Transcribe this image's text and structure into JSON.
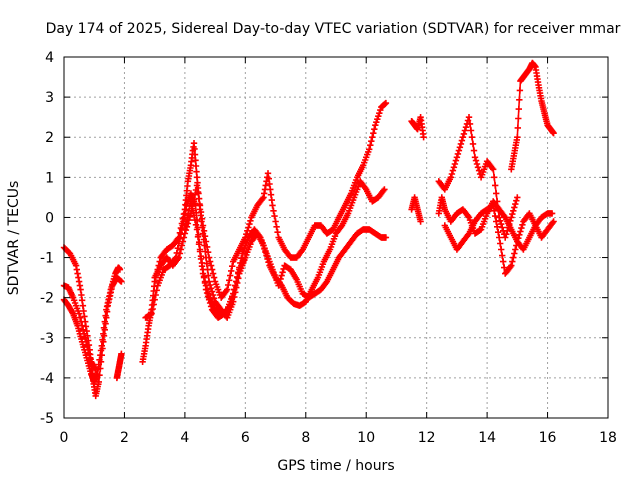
{
  "chart_data": {
    "type": "scatter",
    "title": "Day 174 of 2025, Sidereal Day-to-day VTEC variation (SDTVAR) for receiver mmar",
    "xlabel": "GPS time / hours",
    "ylabel": "SDTVAR / TECUs",
    "xlim": [
      0,
      18
    ],
    "ylim": [
      -5,
      4
    ],
    "xticks": [
      0,
      2,
      4,
      6,
      8,
      10,
      12,
      14,
      16,
      18
    ],
    "yticks": [
      -5,
      -4,
      -3,
      -2,
      -1,
      0,
      1,
      2,
      3,
      4
    ],
    "grid": true,
    "legend": "none",
    "marker": "plus",
    "color": "#ff0000",
    "series": [
      {
        "name": "trace-a",
        "x": [
          0.0,
          0.15,
          0.3,
          0.45,
          0.6,
          0.75,
          0.9,
          1.0,
          1.1,
          1.25,
          1.4,
          1.55,
          1.7,
          1.8,
          1.85
        ],
        "y": [
          -2.05,
          -2.2,
          -2.4,
          -2.7,
          -3.1,
          -3.5,
          -3.9,
          -4.1,
          -3.9,
          -3.2,
          -2.3,
          -1.8,
          -1.4,
          -1.25,
          -1.3
        ]
      },
      {
        "name": "trace-b",
        "x": [
          0.0,
          0.2,
          0.4,
          0.55,
          0.7,
          0.85,
          0.95,
          1.05,
          1.15,
          1.3,
          1.45,
          1.6,
          1.75,
          1.9
        ],
        "y": [
          -0.75,
          -0.9,
          -1.2,
          -1.8,
          -2.6,
          -3.3,
          -4.0,
          -4.45,
          -4.1,
          -3.1,
          -2.2,
          -1.7,
          -1.5,
          -1.6
        ]
      },
      {
        "name": "trace-c",
        "x": [
          0.0,
          0.15,
          0.3,
          0.5,
          0.7,
          0.9,
          1.05
        ],
        "y": [
          -1.7,
          -1.75,
          -2.0,
          -2.4,
          -3.0,
          -3.6,
          -3.8
        ]
      },
      {
        "name": "trace-d",
        "x": [
          1.75,
          1.8,
          1.85,
          1.9
        ],
        "y": [
          -4.0,
          -3.8,
          -3.6,
          -3.4
        ]
      },
      {
        "name": "trace-e",
        "x": [
          2.6,
          2.7,
          2.8,
          2.9,
          3.0,
          3.2,
          3.4,
          3.6,
          3.8,
          4.0,
          4.1,
          4.2,
          4.3,
          4.4,
          4.5,
          4.65,
          4.8,
          5.0,
          5.2,
          5.4,
          5.6,
          5.8,
          6.0
        ],
        "y": [
          -3.6,
          -3.2,
          -2.7,
          -2.3,
          -1.6,
          -1.0,
          -0.8,
          -0.7,
          -0.5,
          0.2,
          0.9,
          1.3,
          1.85,
          1.0,
          0.2,
          -0.7,
          -1.6,
          -2.1,
          -2.3,
          -2.5,
          -2.1,
          -1.4,
          -1.0
        ]
      },
      {
        "name": "trace-f",
        "x": [
          2.7,
          2.9,
          3.1,
          3.3,
          3.5,
          3.7,
          3.9,
          4.05,
          4.2,
          4.35,
          4.5,
          4.7,
          4.9,
          5.1,
          5.3,
          5.5,
          5.7,
          5.9,
          6.1,
          6.3,
          6.5,
          6.7,
          6.9,
          7.1,
          7.3,
          7.5,
          7.7,
          7.9,
          8.1,
          8.3,
          8.5,
          8.7,
          8.9,
          9.1,
          9.3,
          9.5,
          9.7,
          9.9,
          10.1,
          10.3,
          10.5,
          10.65
        ],
        "y": [
          -2.5,
          -2.4,
          -1.7,
          -1.3,
          -1.2,
          -1.0,
          -0.3,
          0.3,
          0.6,
          0.3,
          -0.8,
          -1.8,
          -2.3,
          -2.5,
          -2.4,
          -2.2,
          -1.6,
          -0.9,
          -0.5,
          -0.3,
          -0.5,
          -0.9,
          -1.3,
          -1.7,
          -1.2,
          -1.3,
          -1.55,
          -1.9,
          -2.0,
          -1.9,
          -1.8,
          -1.6,
          -1.3,
          -1.0,
          -0.8,
          -0.6,
          -0.4,
          -0.3,
          -0.3,
          -0.4,
          -0.5,
          -0.5
        ]
      },
      {
        "name": "trace-g",
        "x": [
          3.0,
          3.2,
          3.4,
          3.6,
          3.8,
          4.0,
          4.2,
          4.4,
          4.6,
          4.8,
          5.0,
          5.2,
          5.4,
          5.6,
          5.8,
          6.0,
          6.2,
          6.4,
          6.6,
          6.75,
          6.9,
          7.1,
          7.3,
          7.5,
          7.7,
          7.9,
          8.1,
          8.3,
          8.5,
          8.7,
          8.9,
          9.1,
          9.3,
          9.5,
          9.7,
          9.9,
          10.1,
          10.3,
          10.5,
          10.65
        ],
        "y": [
          -1.5,
          -1.2,
          -1.0,
          -1.2,
          -1.0,
          -0.4,
          0.1,
          0.8,
          -0.2,
          -1.0,
          -1.6,
          -2.0,
          -1.8,
          -1.1,
          -0.8,
          -0.5,
          0.0,
          0.3,
          0.5,
          1.1,
          0.3,
          -0.5,
          -0.8,
          -1.0,
          -1.0,
          -0.8,
          -0.5,
          -0.2,
          -0.2,
          -0.4,
          -0.3,
          0.0,
          0.3,
          0.6,
          1.0,
          1.3,
          1.7,
          2.3,
          2.75,
          2.85
        ]
      },
      {
        "name": "trace-h",
        "x": [
          4.0,
          4.2,
          4.4,
          4.6,
          4.8,
          5.0,
          5.2,
          5.4,
          5.6,
          5.8,
          6.0,
          6.2,
          6.4,
          6.6,
          6.8,
          7.0,
          7.2,
          7.4,
          7.6,
          7.8,
          8.0,
          8.2,
          8.4,
          8.6,
          8.8,
          9.0,
          9.2,
          9.4,
          9.6,
          9.8,
          10.0,
          10.2,
          10.4,
          10.6
        ],
        "y": [
          -0.3,
          0.4,
          -0.3,
          -1.4,
          -2.0,
          -2.3,
          -2.45,
          -2.3,
          -1.9,
          -1.3,
          -1.0,
          -0.6,
          -0.4,
          -0.7,
          -1.2,
          -1.5,
          -1.7,
          -2.0,
          -2.15,
          -2.2,
          -2.1,
          -1.8,
          -1.5,
          -1.1,
          -0.8,
          -0.4,
          -0.2,
          0.1,
          0.5,
          0.9,
          0.7,
          0.4,
          0.5,
          0.7
        ]
      },
      {
        "name": "trace-i",
        "x": [
          11.5,
          11.6,
          11.7,
          11.8,
          11.9
        ],
        "y": [
          2.4,
          2.3,
          2.2,
          2.5,
          2.0
        ]
      },
      {
        "name": "trace-j",
        "x": [
          11.5,
          11.6,
          11.7,
          11.8
        ],
        "y": [
          0.2,
          0.5,
          0.2,
          -0.1
        ]
      },
      {
        "name": "trace-k",
        "x": [
          12.4,
          12.5,
          12.6,
          12.8,
          13.0,
          13.2,
          13.4,
          13.6,
          13.8,
          14.0,
          14.2,
          14.4,
          14.6,
          14.8,
          15.0,
          15.2,
          15.4,
          15.6,
          15.8,
          16.0,
          16.15
        ],
        "y": [
          0.1,
          0.5,
          0.2,
          -0.1,
          0.1,
          0.2,
          0.0,
          -0.4,
          -0.3,
          0.1,
          0.4,
          0.2,
          0.0,
          -0.3,
          -0.6,
          -0.8,
          -0.5,
          -0.2,
          0.0,
          0.1,
          0.1
        ]
      },
      {
        "name": "trace-l",
        "x": [
          12.4,
          12.6,
          12.8,
          13.0,
          13.2,
          13.4,
          13.6,
          13.8,
          14.0,
          14.2,
          14.4,
          14.6,
          14.8,
          15.0
        ],
        "y": [
          0.9,
          0.7,
          1.0,
          1.5,
          2.0,
          2.5,
          1.5,
          1.0,
          1.4,
          1.2,
          0.0,
          -0.5,
          0.0,
          0.5
        ]
      },
      {
        "name": "trace-m",
        "x": [
          12.6,
          12.8,
          13.0,
          13.2,
          13.4,
          13.6,
          13.8,
          14.0,
          14.2,
          14.4,
          14.6,
          14.8,
          15.0,
          15.2,
          15.4,
          15.6,
          15.8,
          16.0,
          16.2
        ],
        "y": [
          -0.2,
          -0.5,
          -0.8,
          -0.6,
          -0.4,
          -0.1,
          0.1,
          0.2,
          0.3,
          -0.5,
          -1.4,
          -1.2,
          -0.6,
          -0.1,
          0.1,
          -0.2,
          -0.5,
          -0.3,
          -0.1
        ]
      },
      {
        "name": "trace-n",
        "x": [
          14.8,
          14.9,
          15.0,
          15.1,
          15.2,
          15.3,
          15.4,
          15.5,
          15.6,
          15.7,
          15.8,
          15.9,
          16.0,
          16.1,
          16.2
        ],
        "y": [
          1.2,
          1.6,
          2.0,
          3.4,
          3.5,
          3.6,
          3.7,
          3.85,
          3.75,
          3.3,
          2.9,
          2.6,
          2.3,
          2.2,
          2.1
        ]
      }
    ]
  }
}
